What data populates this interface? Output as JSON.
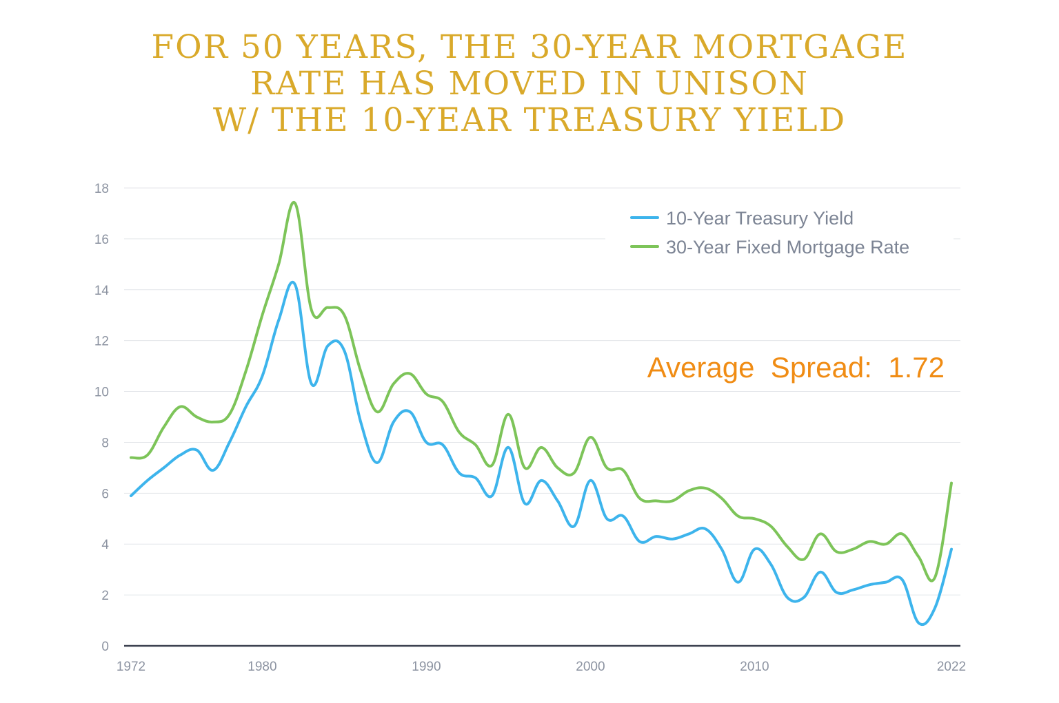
{
  "chart_data": {
    "type": "line",
    "title": "FOR 50 YEARS, THE 30-YEAR MORTGAGE RATE HAS MOVED IN UNISON W/ THE 10-YEAR TREASURY YIELD",
    "title_lines": [
      "FOR 50 YEARS, THE 30-YEAR MORTGAGE",
      "RATE HAS MOVED IN UNISON",
      "W/ THE 10-YEAR TREASURY YIELD"
    ],
    "xlabel": "",
    "ylabel": "",
    "xlim": [
      1972,
      2022
    ],
    "ylim": [
      0,
      18
    ],
    "x_ticks": [
      "1972",
      "1980",
      "1990",
      "2000",
      "2010",
      "2022"
    ],
    "y_ticks": [
      "0",
      "2",
      "4",
      "6",
      "8",
      "10",
      "12",
      "14",
      "16",
      "18"
    ],
    "grid": true,
    "legend_position": "top-right",
    "annotation": "Average  Spread:  1.72",
    "x": [
      1972,
      1973,
      1974,
      1975,
      1976,
      1977,
      1978,
      1979,
      1980,
      1981,
      1982,
      1983,
      1984,
      1985,
      1986,
      1987,
      1988,
      1989,
      1990,
      1991,
      1992,
      1993,
      1994,
      1995,
      1996,
      1997,
      1998,
      1999,
      2000,
      2001,
      2002,
      2003,
      2004,
      2005,
      2006,
      2007,
      2008,
      2009,
      2010,
      2011,
      2012,
      2013,
      2014,
      2015,
      2016,
      2017,
      2018,
      2019,
      2020,
      2021,
      2022
    ],
    "series": [
      {
        "name": "10-Year Treasury Yield",
        "color": "#3DB4EC",
        "values": [
          5.9,
          6.5,
          7.0,
          7.5,
          7.7,
          6.9,
          8.0,
          9.4,
          10.6,
          12.8,
          14.2,
          10.3,
          11.8,
          11.6,
          8.8,
          7.2,
          8.8,
          9.2,
          8.0,
          7.9,
          6.8,
          6.6,
          5.9,
          7.8,
          5.6,
          6.5,
          5.7,
          4.7,
          6.5,
          5.0,
          5.1,
          4.1,
          4.3,
          4.2,
          4.4,
          4.6,
          3.8,
          2.5,
          3.8,
          3.2,
          1.9,
          1.9,
          2.9,
          2.1,
          2.2,
          2.4,
          2.5,
          2.6,
          0.9,
          1.5,
          3.8
        ]
      },
      {
        "name": "30-Year Fixed Mortgage Rate",
        "color": "#7DC459",
        "values": [
          7.4,
          7.5,
          8.6,
          9.4,
          9.0,
          8.8,
          9.1,
          10.8,
          13.0,
          15.0,
          17.4,
          13.2,
          13.3,
          13.0,
          10.8,
          9.2,
          10.3,
          10.7,
          9.9,
          9.6,
          8.4,
          7.9,
          7.1,
          9.1,
          7.0,
          7.8,
          7.0,
          6.8,
          8.2,
          7.0,
          6.9,
          5.8,
          5.7,
          5.7,
          6.1,
          6.2,
          5.8,
          5.1,
          5.0,
          4.7,
          3.9,
          3.4,
          4.4,
          3.7,
          3.8,
          4.1,
          4.0,
          4.4,
          3.5,
          2.7,
          6.4
        ]
      }
    ]
  }
}
